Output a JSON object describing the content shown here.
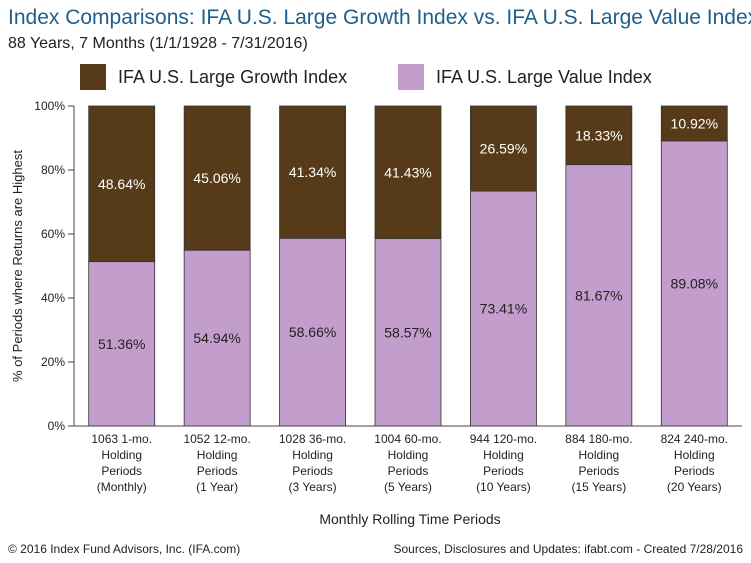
{
  "title": "Index Comparisons: IFA U.S. Large Growth Index vs. IFA U.S. Large Value Index",
  "subtitle": "88 Years, 7 Months (1/1/1928 - 7/31/2016)",
  "colors": {
    "growth": "#573b19",
    "value": "#c39ecd",
    "title": "#1f5f8b"
  },
  "legend": [
    {
      "label": "IFA U.S. Large Growth Index",
      "color": "#573b19"
    },
    {
      "label": "IFA U.S. Large Value Index",
      "color": "#c39ecd"
    }
  ],
  "chart_data": {
    "type": "bar",
    "stacked": true,
    "categories": [
      [
        "1063 1-mo.",
        "Holding",
        "Periods",
        "(Monthly)"
      ],
      [
        "1052 12-mo.",
        "Holding",
        "Periods",
        "(1 Year)"
      ],
      [
        "1028 36-mo.",
        "Holding",
        "Periods",
        "(3 Years)"
      ],
      [
        "1004 60-mo.",
        "Holding",
        "Periods",
        "(5 Years)"
      ],
      [
        "944 120-mo.",
        "Holding",
        "Periods",
        "(10 Years)"
      ],
      [
        "884 180-mo.",
        "Holding",
        "Periods",
        "(15 Years)"
      ],
      [
        "824 240-mo.",
        "Holding",
        "Periods",
        "(20 Years)"
      ]
    ],
    "series": [
      {
        "name": "IFA U.S. Large Value Index",
        "values": [
          51.36,
          54.94,
          58.66,
          58.57,
          73.41,
          81.67,
          89.08
        ],
        "labels": [
          "51.36%",
          "54.94%",
          "58.66%",
          "58.57%",
          "73.41%",
          "81.67%",
          "89.08%"
        ],
        "color": "#c39ecd"
      },
      {
        "name": "IFA U.S. Large Growth Index",
        "values": [
          48.64,
          45.06,
          41.34,
          41.43,
          26.59,
          18.33,
          10.92
        ],
        "labels": [
          "48.64%",
          "45.06%",
          "41.34%",
          "41.43%",
          "26.59%",
          "18.33%",
          "10.92%"
        ],
        "color": "#573b19"
      }
    ],
    "ylim": [
      0,
      100
    ],
    "yticks": [
      "0%",
      "20%",
      "40%",
      "60%",
      "80%",
      "100%"
    ],
    "ylabel": "% of Periods where Returns are Highest",
    "xlabel": "Monthly Rolling Time Periods",
    "legend_position": "top",
    "grid": false
  },
  "footer": {
    "copyright": "© 2016 Index Fund Advisors, Inc. (IFA.com)",
    "sources": "Sources, Disclosures and Updates: ifabt.com - Created 7/28/2016"
  }
}
